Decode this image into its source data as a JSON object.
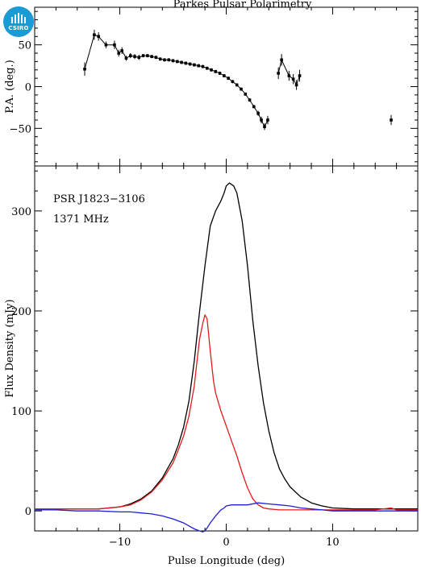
{
  "logo": {
    "text": "CSIRO"
  },
  "chart_data": [
    {
      "type": "scatter",
      "title": "Parkes Pulsar Polarimetry",
      "xlabel": "",
      "ylabel": "P.A. (deg.)",
      "xlim": [
        -18,
        18
      ],
      "ylim": [
        -95,
        95
      ],
      "yticks": [
        50,
        0,
        -50
      ],
      "yticklabels": [
        "50",
        "0",
        "−50"
      ],
      "series": [
        {
          "x": [
            -13.3,
            -12.4,
            -12.0,
            -11.3,
            -10.5,
            -10.1,
            -9.8,
            -9.4,
            -9.0,
            -8.6,
            -8.2,
            -7.8,
            -7.4,
            -7.0,
            -6.6,
            -6.2,
            -5.8,
            -5.4,
            -5.0,
            -4.6,
            -4.2,
            -3.8,
            -3.4,
            -3.0,
            -2.6,
            -2.2,
            -1.8,
            -1.4,
            -1.0,
            -0.6,
            -0.2,
            0.2,
            0.6,
            1.0,
            1.4,
            1.8,
            2.2,
            2.6,
            3.0,
            3.3,
            3.6,
            3.9
          ],
          "y": [
            21,
            62,
            60,
            50,
            50,
            40,
            43,
            34,
            37,
            36,
            35,
            37,
            37,
            36,
            35,
            33,
            32,
            32,
            31,
            30,
            29,
            28,
            27,
            26,
            25,
            24,
            22,
            20,
            18,
            16,
            13,
            10,
            6,
            2,
            -3,
            -9,
            -16,
            -24,
            -32,
            -40,
            -48,
            -40
          ],
          "err": [
            8,
            6,
            5,
            4,
            5,
            4,
            4,
            3,
            3,
            3,
            3,
            2,
            2,
            2,
            2,
            2,
            2,
            2,
            2,
            2,
            2,
            2,
            2,
            2,
            2,
            2,
            2,
            2,
            2,
            2,
            2,
            2,
            2,
            2,
            2,
            2,
            2,
            2,
            3,
            4,
            4,
            5
          ]
        },
        {
          "x": [
            4.9,
            5.2,
            5.9,
            6.3,
            6.6,
            6.9
          ],
          "y": [
            16,
            32,
            13,
            9,
            2,
            13
          ],
          "err": [
            7,
            7,
            6,
            6,
            6,
            7
          ]
        },
        {
          "x": [
            15.5
          ],
          "y": [
            -40
          ],
          "err": [
            6
          ]
        }
      ]
    },
    {
      "type": "line",
      "title": "",
      "annotations": [
        "PSR J1823−3106",
        "1371 MHz"
      ],
      "xlabel": "Pulse Longitude (deg)",
      "ylabel": "Flux Density (mJy)",
      "xlim": [
        -18,
        18
      ],
      "ylim": [
        -20,
        345
      ],
      "xticks": [
        -10,
        0,
        10
      ],
      "xticklabels": [
        "−10",
        "0",
        "10"
      ],
      "yticks": [
        0,
        100,
        200,
        300
      ],
      "yticklabels": [
        "0",
        "100",
        "200",
        "300"
      ],
      "series": [
        {
          "color": "#000000",
          "x": [
            -18,
            -16,
            -14,
            -12,
            -10,
            -9,
            -8,
            -7,
            -6,
            -5,
            -4.5,
            -4,
            -3.5,
            -3,
            -2.5,
            -2,
            -1.5,
            -1,
            -0.5,
            -0.2,
            0,
            0.3,
            0.7,
            1,
            1.5,
            2,
            2.5,
            3,
            3.5,
            4,
            4.5,
            5,
            5.5,
            6,
            7,
            8,
            9,
            10,
            12,
            14,
            16,
            18
          ],
          "y": [
            2,
            2,
            2,
            2,
            4,
            7,
            12,
            20,
            33,
            52,
            66,
            84,
            110,
            150,
            200,
            245,
            285,
            300,
            310,
            318,
            325,
            328,
            325,
            318,
            290,
            245,
            190,
            145,
            108,
            80,
            58,
            42,
            32,
            24,
            14,
            8,
            5,
            3,
            2,
            2,
            2,
            2
          ]
        },
        {
          "color": "#e41a1c",
          "x": [
            -18,
            -16,
            -14,
            -12,
            -10,
            -9,
            -8,
            -7,
            -6,
            -5,
            -4.5,
            -4,
            -3.5,
            -3,
            -2.8,
            -2.5,
            -2.2,
            -2,
            -1.8,
            -1.5,
            -1.2,
            -1,
            -0.5,
            0,
            0.5,
            1,
            1.5,
            2,
            2.5,
            3,
            3.5,
            4,
            5,
            6,
            8,
            10,
            12,
            14,
            15.5,
            16,
            18
          ],
          "y": [
            2,
            2,
            2,
            2,
            4,
            6,
            11,
            19,
            31,
            48,
            61,
            75,
            95,
            125,
            145,
            172,
            188,
            196,
            192,
            160,
            130,
            118,
            100,
            85,
            70,
            55,
            38,
            23,
            12,
            6,
            3,
            2,
            1,
            1,
            1,
            1,
            1,
            1,
            3,
            1,
            1
          ]
        },
        {
          "color": "#1f1fd6",
          "x": [
            -18,
            -16,
            -14,
            -12,
            -10,
            -9,
            -8,
            -7,
            -6,
            -5,
            -4.5,
            -4,
            -3.5,
            -3,
            -2.5,
            -2.2,
            -2,
            -1.8,
            -1.5,
            -1,
            -0.5,
            -0.2,
            0,
            0.5,
            1,
            2,
            3,
            4,
            5,
            6,
            7,
            8,
            9,
            10,
            12,
            14,
            16,
            18
          ],
          "y": [
            1,
            1,
            0,
            0,
            -1,
            -1,
            -2,
            -3,
            -5,
            -8,
            -10,
            -12,
            -15,
            -18,
            -20,
            -21,
            -20,
            -17,
            -12,
            -5,
            1,
            3,
            5,
            6,
            6,
            6,
            8,
            7,
            6,
            5,
            3,
            2,
            1,
            0,
            0,
            0,
            0,
            0
          ]
        }
      ]
    }
  ]
}
